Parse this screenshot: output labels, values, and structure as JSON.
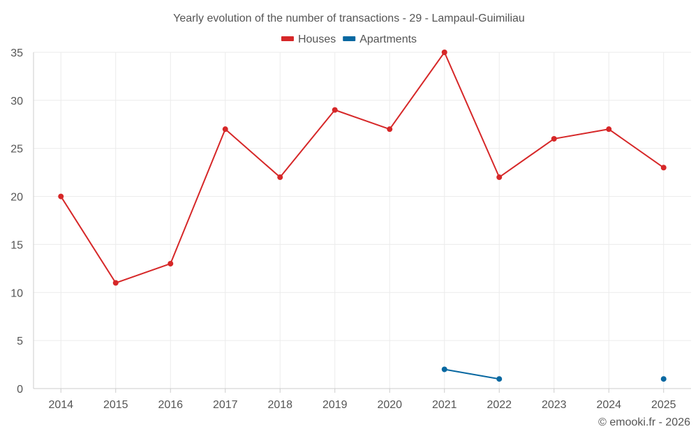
{
  "chart_data": {
    "type": "line",
    "title": "Yearly evolution of the number of transactions - 29 - Lampaul-Guimiliau",
    "xlabel": "",
    "ylabel": "",
    "categories": [
      "2014",
      "2015",
      "2016",
      "2017",
      "2018",
      "2019",
      "2020",
      "2021",
      "2022",
      "2023",
      "2024",
      "2025"
    ],
    "ylim": [
      0,
      35
    ],
    "yticks": [
      0,
      5,
      10,
      15,
      20,
      25,
      30,
      35
    ],
    "grid": true,
    "legend_position": "top-center",
    "series": [
      {
        "name": "Houses",
        "color": "#d62728",
        "values": [
          20,
          11,
          13,
          27,
          22,
          29,
          27,
          35,
          22,
          26,
          27,
          23
        ]
      },
      {
        "name": "Apartments",
        "color": "#0868a1",
        "values": [
          null,
          null,
          null,
          null,
          null,
          null,
          null,
          2,
          1,
          null,
          null,
          1
        ]
      }
    ]
  },
  "footer": {
    "copyright": "© emooki.fr - 2026"
  }
}
